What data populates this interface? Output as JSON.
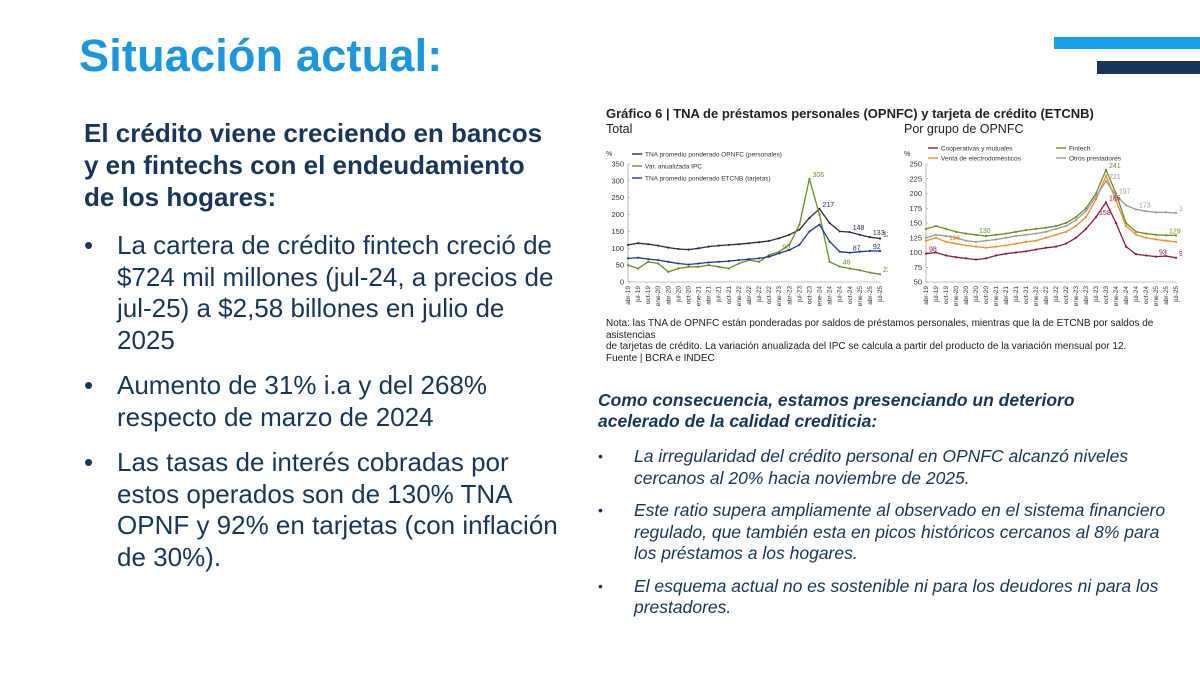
{
  "slide": {
    "title": "Situación actual:",
    "lead": "El crédito viene creciendo en bancos y en fintechs con el endeudamiento de los hogares:",
    "bullets": [
      "La cartera de crédito fintech creció de $724 mil millones (jul-24, a precios de jul-25) a $2,58 billones en julio de 2025",
      "Aumento de 31% i.a y del 268% respecto de marzo de 2024",
      "Las tasas de interés cobradas por estos operados son de 130% TNA OPNF y 92% en tarjetas (con inflación de 30%)."
    ],
    "bullet_marker": "•",
    "consequence_heading": "Como consecuencia, estamos presenciando un deterioro acelerado de la calidad crediticia:",
    "consequence_bullets": [
      "La irregularidad del crédito personal en OPNFC alcanzó niveles cercanos al 20% hacia noviembre de 2025.",
      "Este ratio supera ampliamente al observado en el sistema financiero regulado, que también esta en picos históricos cercanos al 8% para los préstamos a los hogares.",
      "El esquema actual no es sostenible ni para los deudores ni para los prestadores."
    ],
    "colors": {
      "title": "#1d96e0",
      "text": "#18365b",
      "accent_bar_light": "#1a9ee8",
      "accent_bar_dark": "#16365c"
    }
  },
  "figure": {
    "title": "Gráfico 6 | TNA de préstamos personales (OPNFC) y tarjeta de crédito (ETCNB)",
    "subtitle_left": "Total",
    "subtitle_right": "Por grupo de OPNFC",
    "note_line1": "Nota: las TNA de OPNFC están ponderadas por saldos de préstamos personales, mientras que la de ETCNB por saldos de asistencias",
    "note_line2": "de tarjetas de crédito. La variación anualizada del IPC se calcula a partir del producto de la variación mensual por 12.",
    "source": "Fuente | BCRA e INDEC"
  },
  "chart_data": [
    {
      "type": "line",
      "title": "Total",
      "ylabel": "%",
      "ylim": [
        0,
        350
      ],
      "yticks": [
        0,
        50,
        100,
        150,
        200,
        250,
        300,
        350
      ],
      "x": [
        "abr-19",
        "jul-19",
        "oct-19",
        "ene-20",
        "abr-20",
        "jul-20",
        "oct-20",
        "ene-21",
        "abr-21",
        "jul-21",
        "oct-21",
        "ene-22",
        "abr-22",
        "jul-22",
        "oct-22",
        "ene-23",
        "abr-23",
        "jul-23",
        "oct-23",
        "ene-24",
        "abr-24",
        "jul-24",
        "oct-24",
        "ene-25",
        "abr-25",
        "jul-25"
      ],
      "legend_position": "top-left",
      "series": [
        {
          "name": "TNA promedio ponderado OPNFC (personales)",
          "color": "#2b2d42",
          "values": [
            110,
            115,
            112,
            108,
            102,
            98,
            96,
            100,
            105,
            108,
            110,
            112,
            115,
            118,
            122,
            130,
            140,
            155,
            190,
            217,
            175,
            150,
            148,
            140,
            133,
            129
          ]
        },
        {
          "name": "Var. anualizada IPC",
          "color": "#6b8e23",
          "values": [
            50,
            40,
            60,
            55,
            30,
            40,
            45,
            45,
            50,
            45,
            40,
            55,
            65,
            60,
            80,
            90,
            110,
            170,
            306,
            200,
            60,
            46,
            40,
            35,
            28,
            23
          ]
        },
        {
          "name": "TNA promedio ponderado ETCNB (tarjetas)",
          "color": "#1f3a93",
          "values": [
            70,
            72,
            68,
            65,
            60,
            55,
            52,
            55,
            58,
            60,
            62,
            65,
            68,
            70,
            75,
            85,
            95,
            110,
            150,
            170,
            120,
            90,
            87,
            90,
            92,
            92
          ]
        }
      ],
      "labels": [
        "306",
        "217",
        "148",
        "133",
        "129",
        "90",
        "87",
        "92",
        "46",
        "23"
      ]
    },
    {
      "type": "line",
      "title": "Por grupo de OPNFC",
      "ylabel": "%",
      "ylim": [
        50,
        250
      ],
      "yticks": [
        50,
        75,
        100,
        125,
        150,
        175,
        200,
        225,
        250
      ],
      "x": [
        "abr-19",
        "jul-19",
        "oct-19",
        "ene-20",
        "abr-20",
        "jul-20",
        "oct-20",
        "ene-21",
        "abr-21",
        "jul-21",
        "oct-21",
        "ene-22",
        "abr-22",
        "jul-22",
        "oct-22",
        "ene-23",
        "abr-23",
        "jul-23",
        "oct-23",
        "ene-24",
        "abr-24",
        "jul-24",
        "oct-24",
        "ene-25",
        "abr-25",
        "jul-25"
      ],
      "legend_position": "top",
      "series": [
        {
          "name": "Cooperativas y mutuales",
          "color": "#8b1a3a",
          "values": [
            98,
            100,
            95,
            92,
            90,
            88,
            90,
            95,
            98,
            100,
            102,
            105,
            108,
            110,
            115,
            125,
            140,
            160,
            185,
            150,
            110,
            97,
            95,
            93,
            94,
            91
          ]
        },
        {
          "name": "Fintech",
          "color": "#6b8e23",
          "values": [
            140,
            145,
            140,
            135,
            132,
            130,
            128,
            130,
            132,
            135,
            138,
            140,
            142,
            145,
            150,
            160,
            175,
            200,
            240,
            200,
            150,
            135,
            132,
            130,
            129,
            129
          ]
        },
        {
          "name": "Venta de electrodomésticos",
          "color": "#f28c28",
          "values": [
            120,
            125,
            118,
            115,
            112,
            110,
            108,
            110,
            112,
            115,
            118,
            120,
            125,
            130,
            135,
            145,
            160,
            190,
            230,
            188,
            145,
            130,
            125,
            122,
            120,
            118
          ]
        },
        {
          "name": "Otros prestadores",
          "color": "#9a9a9a",
          "values": [
            125,
            130,
            128,
            125,
            120,
            118,
            120,
            122,
            125,
            128,
            130,
            132,
            135,
            140,
            145,
            155,
            170,
            195,
            221,
            197,
            180,
            173,
            170,
            168,
            168,
            167
          ]
        }
      ],
      "labels": [
        "241",
        "221",
        "197",
        "185",
        "173",
        "167",
        "158",
        "130",
        "129",
        "118",
        "98",
        "93",
        "91"
      ]
    }
  ]
}
